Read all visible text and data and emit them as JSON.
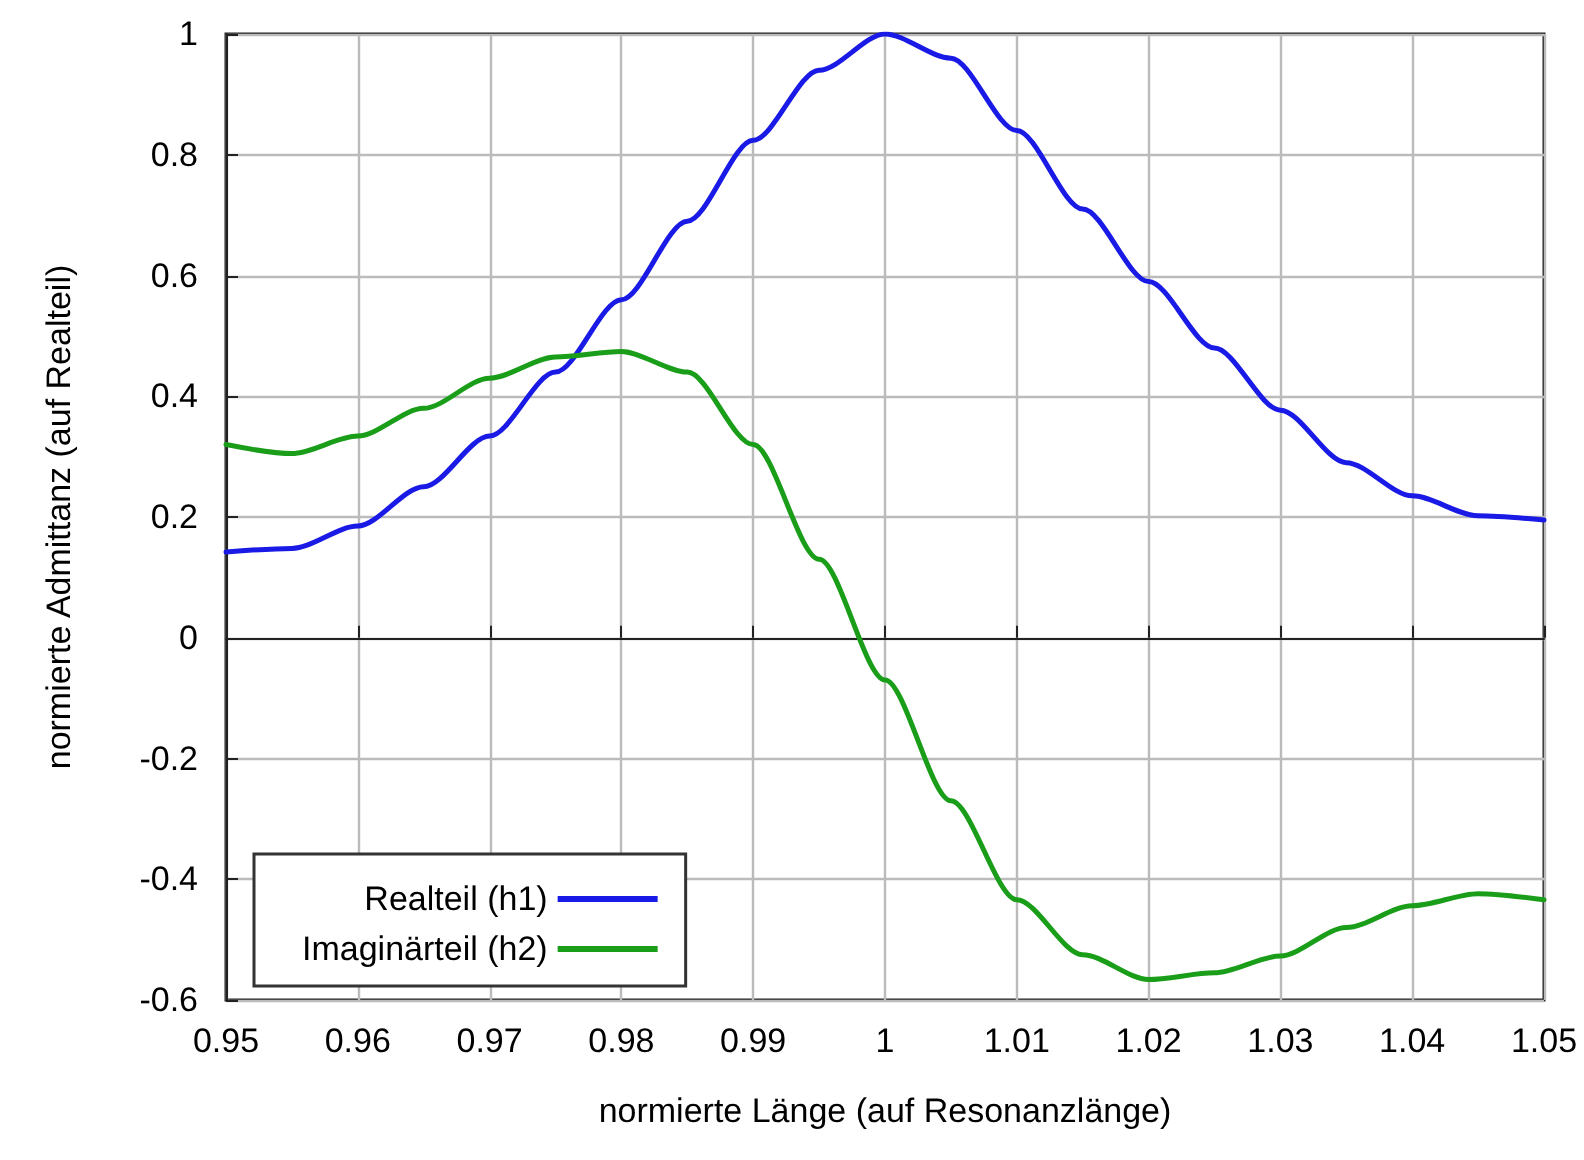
{
  "chart_data": {
    "type": "line",
    "xlabel": "normierte Länge (auf Resonanzlänge)",
    "ylabel": "normierte Admittanz (auf Realteil)",
    "x": [
      0.95,
      0.955,
      0.96,
      0.965,
      0.97,
      0.975,
      0.98,
      0.985,
      0.99,
      0.995,
      1.0,
      1.005,
      1.01,
      1.015,
      1.02,
      1.025,
      1.03,
      1.035,
      1.04,
      1.045,
      1.05
    ],
    "series": [
      {
        "name": "Realteil (h1)",
        "color": "#1a1ae6",
        "values": [
          0.142,
          0.148,
          0.185,
          0.25,
          0.334,
          0.44,
          0.56,
          0.69,
          0.824,
          0.94,
          1.0,
          0.96,
          0.84,
          0.71,
          0.59,
          0.48,
          0.377,
          0.29,
          0.235,
          0.202,
          0.195
        ]
      },
      {
        "name": "Imaginärteil (h2)",
        "color": "#1a9e1a",
        "values": [
          0.32,
          0.305,
          0.334,
          0.38,
          0.43,
          0.465,
          0.474,
          0.44,
          0.32,
          0.13,
          -0.07,
          -0.27,
          -0.434,
          -0.525,
          -0.566,
          -0.555,
          -0.527,
          -0.48,
          -0.444,
          -0.424,
          -0.434
        ]
      }
    ],
    "xlim": [
      0.95,
      1.05
    ],
    "xticks": [
      0.95,
      0.96,
      0.97,
      0.98,
      0.99,
      1,
      1.01,
      1.02,
      1.03,
      1.04,
      1.05
    ],
    "ylim": [
      -0.6,
      1
    ],
    "yticks": [
      -0.6,
      -0.4,
      -0.2,
      0,
      0.2,
      0.4,
      0.6,
      0.8,
      1
    ],
    "grid": true,
    "legend": "bottom left",
    "marker": "none",
    "line_style": "solid"
  }
}
